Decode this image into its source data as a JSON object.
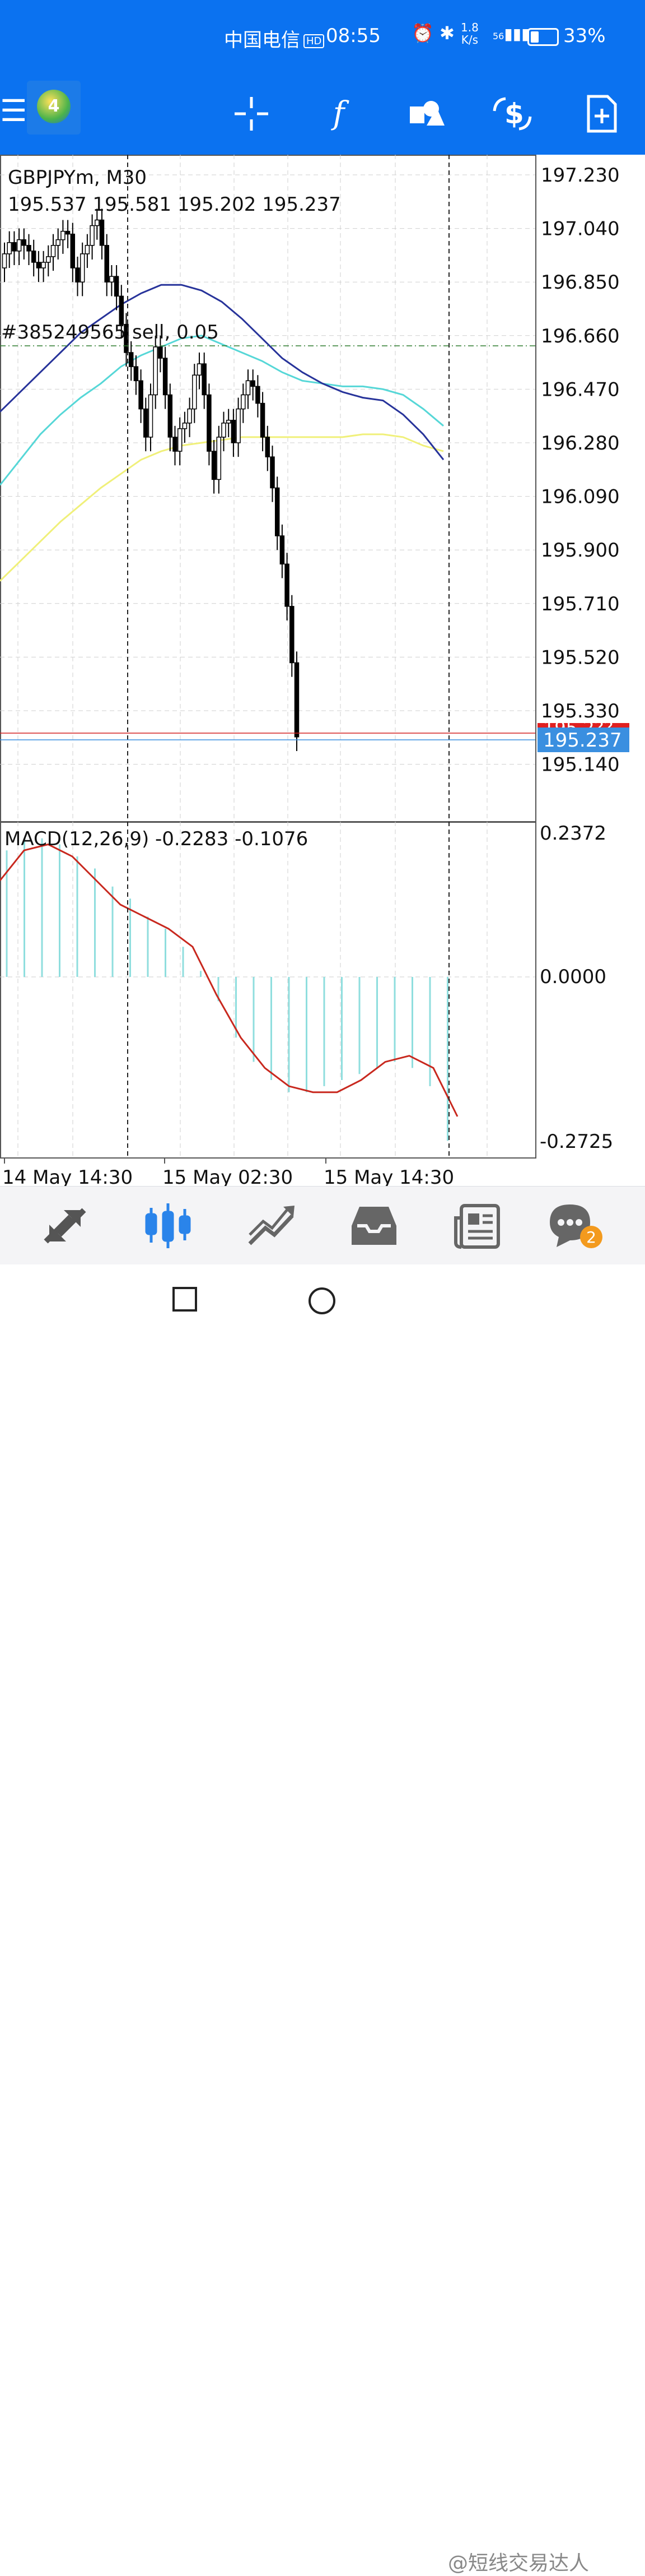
{
  "status_bar": {
    "carrier": "中国电信",
    "hd": "HD",
    "time": "08:55",
    "net_speed_value": "1.8",
    "net_speed_unit": "K/s",
    "signal": "56",
    "battery": "33%"
  },
  "toolbar": {
    "items": [
      "crosshair-icon",
      "indicators-icon",
      "objects-icon",
      "trade-icon",
      "new-order-icon"
    ]
  },
  "chart": {
    "symbol_label": "GBPJPYm, M30",
    "ohlc_label": "195.537 195.581 195.202 195.237",
    "order_label": "#385249565 sell, 0.05",
    "price_scale": [
      "197.230",
      "197.040",
      "196.850",
      "196.660",
      "196.470",
      "196.280",
      "196.090",
      "195.900",
      "195.710",
      "195.520",
      "195.330",
      "195.140"
    ],
    "bid_label": "195.237",
    "ask_label_partial": "195.2??",
    "macd_label": "MACD(12,26,9) -0.2283 -0.1076",
    "macd_scale": [
      "0.2372",
      "0.0000",
      "-0.2725"
    ],
    "time_labels": [
      "14 May 14:30",
      "15 May 02:30",
      "15 May 14:30"
    ]
  },
  "chart_data": {
    "type": "candlestick",
    "symbol": "GBPJPYm",
    "timeframe": "M30",
    "price_range": [
      195.05,
      197.3
    ],
    "current_bid": 195.237,
    "order_price": 196.64,
    "ma_fast": [
      196.39,
      196.46,
      196.53,
      196.6,
      196.67,
      196.72,
      196.77,
      196.81,
      196.84,
      196.84,
      196.82,
      196.78,
      196.72,
      196.65,
      196.58,
      196.53,
      196.49,
      196.46,
      196.44,
      196.43,
      196.38,
      196.31,
      196.22
    ],
    "ma_mid": [
      196.13,
      196.22,
      196.31,
      196.38,
      196.44,
      196.49,
      196.55,
      196.59,
      196.62,
      196.65,
      196.66,
      196.63,
      196.6,
      196.57,
      196.53,
      196.5,
      196.49,
      196.48,
      196.48,
      196.47,
      196.45,
      196.4,
      196.34
    ],
    "ma_slow": [
      195.79,
      195.86,
      195.93,
      196.0,
      196.06,
      196.12,
      196.17,
      196.22,
      196.25,
      196.27,
      196.28,
      196.29,
      196.3,
      196.3,
      196.3,
      196.3,
      196.3,
      196.3,
      196.31,
      196.31,
      196.3,
      196.27,
      196.25
    ],
    "macd_range": [
      -0.2725,
      0.2372
    ],
    "macd_signal": [
      0.16,
      0.21,
      0.22,
      0.2,
      0.16,
      0.12,
      0.1,
      0.08,
      0.05,
      -0.03,
      -0.1,
      -0.15,
      -0.18,
      -0.19,
      -0.19,
      -0.17,
      -0.14,
      -0.13,
      -0.15,
      -0.23
    ],
    "macd_hist": [
      0.21,
      0.23,
      0.23,
      0.22,
      0.2,
      0.18,
      0.15,
      0.13,
      0.1,
      0.08,
      0.05,
      0.01,
      -0.04,
      -0.1,
      -0.14,
      -0.17,
      -0.19,
      -0.19,
      -0.18,
      -0.17,
      -0.16,
      -0.15,
      -0.14,
      -0.15,
      -0.18,
      -0.27
    ]
  },
  "bottom_nav": {
    "items": [
      "quotes-icon",
      "chart-icon",
      "trade-icon",
      "history-icon",
      "news-icon",
      "messages-icon"
    ],
    "messages_badge": "2"
  },
  "watermark": "@短线交易达人"
}
